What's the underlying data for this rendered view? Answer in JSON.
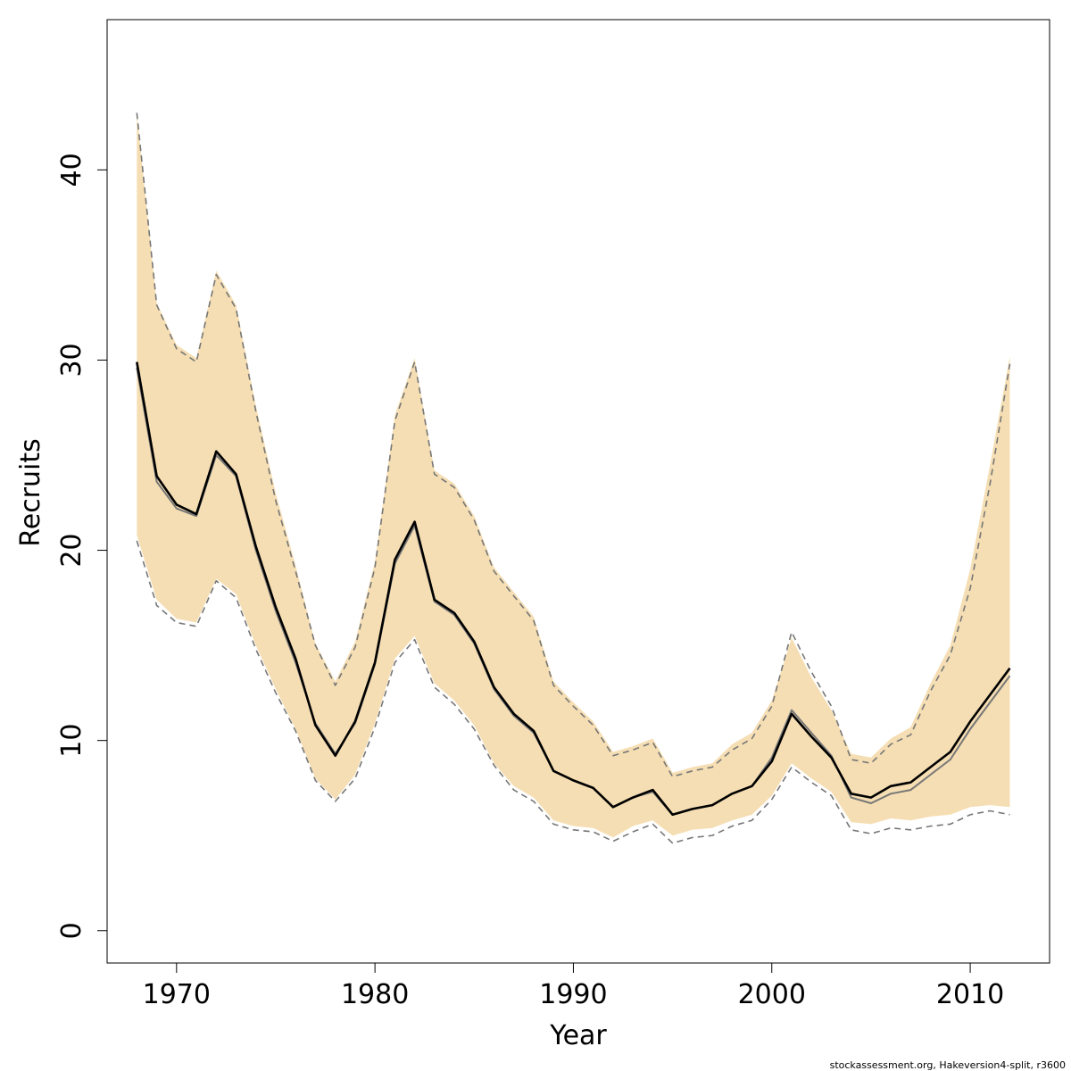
{
  "chart_data": {
    "type": "line",
    "xlabel": "Year",
    "ylabel": "Recruits",
    "xlim": [
      1966.5,
      2014.0
    ],
    "ylim": [
      -1.7,
      47.9
    ],
    "xticks": [
      1970,
      1980,
      1990,
      2000,
      2010
    ],
    "yticks": [
      0,
      10,
      20,
      30,
      40
    ],
    "grid": false,
    "legend": "none",
    "x": [
      1968,
      1969,
      1970,
      1971,
      1972,
      1973,
      1974,
      1975,
      1976,
      1977,
      1978,
      1979,
      1980,
      1981,
      1982,
      1983,
      1984,
      1985,
      1986,
      1987,
      1988,
      1989,
      1990,
      1991,
      1992,
      1993,
      1994,
      1995,
      1996,
      1997,
      1998,
      1999,
      2000,
      2001,
      2002,
      2003,
      2004,
      2005,
      2006,
      2007,
      2008,
      2009,
      2010,
      2011,
      2012
    ],
    "series": [
      {
        "role": "median",
        "values": [
          29.9,
          23.9,
          22.4,
          21.9,
          25.2,
          24.0,
          20.2,
          17.0,
          14.3,
          10.8,
          9.2,
          11.0,
          14.1,
          19.5,
          21.5,
          17.4,
          16.7,
          15.2,
          12.8,
          11.4,
          10.5,
          8.4,
          7.9,
          7.5,
          6.5,
          7.0,
          7.4,
          6.1,
          6.4,
          6.6,
          7.2,
          7.6,
          8.9,
          11.4,
          10.2,
          9.1,
          7.2,
          7.0,
          7.6,
          7.8,
          8.6,
          9.4,
          11.0,
          12.4,
          13.8
        ],
        "color": "#000000"
      },
      {
        "role": "mean",
        "values": [
          29.6,
          23.6,
          22.2,
          21.8,
          25.0,
          23.9,
          20.0,
          16.8,
          14.1,
          10.9,
          9.3,
          10.9,
          14.0,
          19.3,
          21.3,
          17.3,
          16.6,
          15.1,
          12.7,
          11.3,
          10.4,
          8.4,
          7.9,
          7.5,
          6.5,
          7.0,
          7.3,
          6.1,
          6.4,
          6.6,
          7.2,
          7.6,
          9.1,
          11.6,
          10.4,
          9.2,
          7.0,
          6.7,
          7.2,
          7.4,
          8.2,
          9.0,
          10.6,
          12.0,
          13.4
        ],
        "color": "#777777"
      },
      {
        "role": "upper_interval",
        "values": [
          43.0,
          32.9,
          30.6,
          29.9,
          34.5,
          32.7,
          27.3,
          22.6,
          18.9,
          15.0,
          12.9,
          14.9,
          19.1,
          26.8,
          29.9,
          24.0,
          23.3,
          21.6,
          18.9,
          17.6,
          16.3,
          12.9,
          11.8,
          10.8,
          9.2,
          9.5,
          9.9,
          8.1,
          8.4,
          8.6,
          9.5,
          10.1,
          11.8,
          15.7,
          13.6,
          11.8,
          9.0,
          8.8,
          9.8,
          10.3,
          12.6,
          14.5,
          18.0,
          23.5,
          29.8
        ],
        "color": "#777777",
        "dash": true
      },
      {
        "role": "lower_interval",
        "values": [
          20.5,
          17.1,
          16.2,
          16.0,
          18.4,
          17.5,
          14.8,
          12.5,
          10.5,
          7.9,
          6.8,
          8.0,
          10.7,
          14.1,
          15.3,
          12.8,
          11.9,
          10.6,
          8.7,
          7.4,
          6.8,
          5.6,
          5.3,
          5.2,
          4.7,
          5.2,
          5.6,
          4.6,
          4.9,
          5.0,
          5.5,
          5.8,
          6.9,
          8.6,
          7.8,
          7.1,
          5.3,
          5.1,
          5.4,
          5.3,
          5.5,
          5.6,
          6.1,
          6.3,
          6.1
        ],
        "color": "#777777",
        "dash": true
      }
    ],
    "band": {
      "upper": [
        43.0,
        33.0,
        30.8,
        30.1,
        34.7,
        32.9,
        27.6,
        23.0,
        19.2,
        15.1,
        13.1,
        15.2,
        19.4,
        27.1,
        30.1,
        24.2,
        23.5,
        21.8,
        19.1,
        17.8,
        16.5,
        13.1,
        12.0,
        11.0,
        9.4,
        9.7,
        10.1,
        8.3,
        8.6,
        8.8,
        9.8,
        10.4,
        12.1,
        15.4,
        13.3,
        11.6,
        9.3,
        9.1,
        10.1,
        10.7,
        13.0,
        15.0,
        19.0,
        24.5,
        30.2
      ],
      "lower": [
        20.8,
        17.4,
        16.4,
        16.2,
        18.5,
        17.7,
        15.0,
        12.7,
        10.6,
        8.0,
        6.9,
        8.2,
        10.9,
        14.3,
        15.5,
        13.0,
        12.1,
        10.8,
        8.8,
        7.6,
        7.0,
        5.8,
        5.5,
        5.4,
        4.9,
        5.5,
        5.8,
        5.0,
        5.3,
        5.4,
        5.8,
        6.1,
        7.1,
        8.8,
        8.0,
        7.3,
        5.7,
        5.6,
        5.9,
        5.8,
        6.0,
        6.1,
        6.5,
        6.6,
        6.5
      ],
      "color": "#f5deb3"
    },
    "footer": "stockassessment.org, Hakeversion4-split, r3600"
  }
}
